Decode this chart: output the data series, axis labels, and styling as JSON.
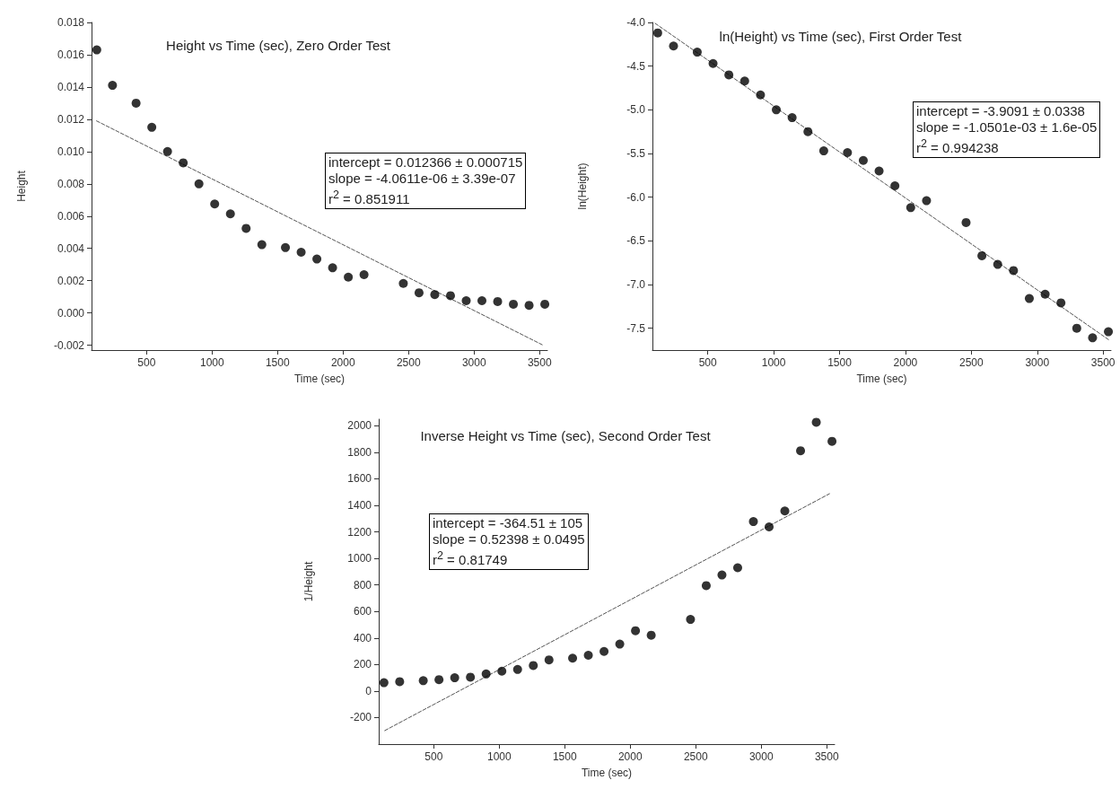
{
  "chart_data": [
    {
      "type": "scatter",
      "title": "Height vs Time (sec), Zero Order Test",
      "xlabel": "Time (sec)",
      "ylabel": "Height",
      "x": [
        120,
        240,
        420,
        540,
        660,
        780,
        900,
        1020,
        1140,
        1260,
        1380,
        1560,
        1680,
        1800,
        1920,
        2040,
        2160,
        2460,
        2580,
        2700,
        2820,
        2940,
        3060,
        3180,
        3300,
        3420,
        3540
      ],
      "series": [
        {
          "type": "scatter",
          "marker": "circle",
          "color": "#000000",
          "values": [
            0.0163,
            0.0141,
            0.013,
            0.0115,
            0.01,
            0.0093,
            0.008,
            0.00675,
            0.00614,
            0.00524,
            0.00423,
            0.00405,
            0.00376,
            0.00334,
            0.0028,
            0.00222,
            0.00237,
            0.00183,
            0.00125,
            0.00114,
            0.00107,
            0.00076,
            0.00076,
            0.00071,
            0.00054,
            0.00047,
            0.00054
          ]
        },
        {
          "type": "line",
          "marker": "none",
          "line_style": "dashed",
          "color": "#555555",
          "x": [
            118,
            3520
          ],
          "values": [
            0.0119,
            -0.00197
          ]
        }
      ],
      "xlim": [
        80,
        3560
      ],
      "xticks": [
        500,
        1000,
        1500,
        2000,
        2500,
        3000,
        3500
      ],
      "ylim": [
        -0.0023,
        0.018
      ],
      "yticks": [
        {
          "value": -0.002,
          "label": "-0.002"
        },
        {
          "value": 0,
          "label": "0.000"
        },
        {
          "value": 0.002,
          "label": "0.002"
        },
        {
          "value": 0.004,
          "label": "0.004"
        },
        {
          "value": 0.006,
          "label": "0.006"
        },
        {
          "value": 0.008,
          "label": "0.008"
        },
        {
          "value": 0.01,
          "label": "0.010"
        },
        {
          "value": 0.012,
          "label": "0.012"
        },
        {
          "value": 0.014,
          "label": "0.014"
        },
        {
          "value": 0.016,
          "label": "0.016"
        },
        {
          "value": 0.018,
          "label": "0.018"
        }
      ],
      "annotations": [
        "intercept = 0.012366 ± 0.000715",
        "slope = -4.0611e-06 ± 3.39e-07",
        "r$^{2}$ = 0.851911"
      ]
    },
    {
      "type": "scatter",
      "title": "ln(Height) vs Time (sec), First Order Test",
      "xlabel": "Time (sec)",
      "ylabel": "ln(Height)",
      "x": [
        120,
        240,
        420,
        540,
        660,
        780,
        900,
        1020,
        1140,
        1260,
        1380,
        1560,
        1680,
        1800,
        1920,
        2040,
        2160,
        2460,
        2580,
        2700,
        2820,
        2940,
        3060,
        3180,
        3300,
        3420,
        3540
      ],
      "series": [
        {
          "type": "scatter",
          "marker": "circle",
          "color": "#000000",
          "values": [
            -4.12,
            -4.27,
            -4.34,
            -4.47,
            -4.6,
            -4.67,
            -4.83,
            -5.0,
            -5.09,
            -5.25,
            -5.47,
            -5.49,
            -5.58,
            -5.7,
            -5.87,
            -6.12,
            -6.04,
            -6.29,
            -6.67,
            -6.77,
            -6.84,
            -7.16,
            -7.11,
            -7.21,
            -7.5,
            -7.61,
            -7.54
          ]
        },
        {
          "type": "line",
          "marker": "none",
          "line_style": "dashed",
          "color": "#555555",
          "x": [
            100,
            3550
          ],
          "values": [
            -4.01,
            -7.64
          ]
        }
      ],
      "xlim": [
        80,
        3560
      ],
      "xticks": [
        500,
        1000,
        1500,
        2000,
        2500,
        3000,
        3500
      ],
      "ylim": [
        -7.75,
        -4.0
      ],
      "yticks": [
        {
          "value": -7.5,
          "label": "-7.5"
        },
        {
          "value": -7,
          "label": "-7.0"
        },
        {
          "value": -6.5,
          "label": "-6.5"
        },
        {
          "value": -6,
          "label": "-6.0"
        },
        {
          "value": -5.5,
          "label": "-5.5"
        },
        {
          "value": -5,
          "label": "-5.0"
        },
        {
          "value": -4.5,
          "label": "-4.5"
        },
        {
          "value": -4,
          "label": "-4.0"
        }
      ],
      "annotations": [
        "intercept = -3.9091 ± 0.0338",
        "slope = -1.0501e-03 ± 1.6e-05",
        "r$^{2}$ = 0.994238"
      ]
    },
    {
      "type": "scatter",
      "title": "Inverse Height vs Time (sec), Second Order Test",
      "xlabel": "Time (sec)",
      "ylabel": "1/Height",
      "x": [
        120,
        240,
        420,
        540,
        660,
        780,
        900,
        1020,
        1140,
        1260,
        1380,
        1560,
        1680,
        1800,
        1920,
        2040,
        2160,
        2460,
        2580,
        2700,
        2820,
        2940,
        3060,
        3180,
        3300,
        3420,
        3540
      ],
      "series": [
        {
          "type": "scatter",
          "marker": "circle",
          "color": "#000000",
          "values": [
            63,
            71,
            78,
            86,
            100,
            105,
            129,
            150,
            163,
            193,
            235,
            248,
            270,
            299,
            354,
            455,
            421,
            540,
            795,
            875,
            930,
            1278,
            1238,
            1358,
            1812,
            2027,
            1883
          ]
        },
        {
          "type": "line",
          "marker": "none",
          "line_style": "dashed",
          "color": "#555555",
          "x": [
            126,
            3521
          ],
          "values": [
            -298,
            1488
          ]
        }
      ],
      "xlim": [
        80,
        3560
      ],
      "xticks": [
        500,
        1000,
        1500,
        2000,
        2500,
        3000,
        3500
      ],
      "ylim": [
        -400,
        2050
      ],
      "yticks": [
        -200,
        0,
        200,
        400,
        600,
        800,
        1000,
        1200,
        1400,
        1600,
        1800,
        2000
      ],
      "annotations": [
        "intercept = -364.51 ± 105",
        "slope = 0.52398 ± 0.0495",
        "r$^{2}$ = 0.81749"
      ]
    }
  ]
}
